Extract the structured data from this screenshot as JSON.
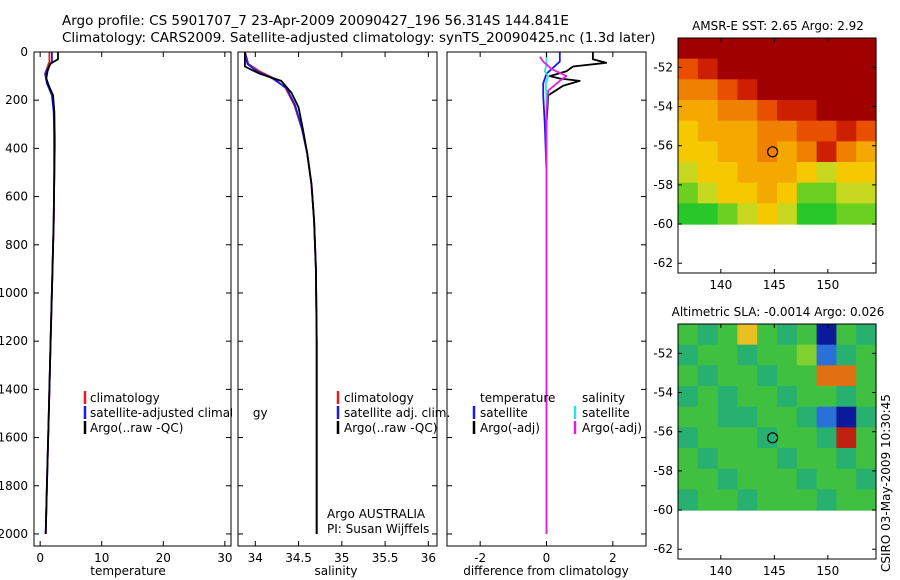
{
  "title": {
    "line1": "Argo profile: CS 5901707_7 23-Apr-2009 20090427_196 56.314S 144.841E",
    "line2": "Climatology: CARS2009. Satellite-adjusted climatology: synTS_20090425.nc (1.3d later)"
  },
  "side_text": "CSIRO 03-May-2009 10:30:45",
  "chart_data": [
    {
      "type": "line",
      "xlabel": "temperature",
      "ylabel": "",
      "xlim": [
        -1,
        31
      ],
      "ylim": [
        2050,
        0
      ],
      "xticks": [
        0,
        10,
        20,
        30
      ],
      "yticks": [
        0,
        200,
        400,
        600,
        800,
        1000,
        1200,
        1400,
        1600,
        1800,
        2000
      ],
      "grid": false,
      "legend": {
        "placement": "center-right",
        "entries": [
          {
            "label": "climatology",
            "color": "#e02020"
          },
          {
            "label": "satellite-adjusted climatology",
            "color": "#1a1ae6"
          },
          {
            "label": "Argo(..raw -QC)",
            "color": "#000000"
          }
        ]
      },
      "series": [
        {
          "name": "climatology",
          "color": "#e02020",
          "points": [
            [
              1.5,
              0
            ],
            [
              1.5,
              40
            ],
            [
              0.8,
              90
            ],
            [
              1.2,
              130
            ],
            [
              2.0,
              180
            ],
            [
              2.3,
              250
            ],
            [
              2.4,
              350
            ],
            [
              2.4,
              400
            ],
            [
              2.3,
              500
            ],
            [
              2.2,
              700
            ],
            [
              2.0,
              900
            ],
            [
              1.7,
              1200
            ],
            [
              1.4,
              1500
            ],
            [
              1.1,
              1800
            ],
            [
              0.9,
              2000
            ]
          ]
        },
        {
          "name": "satellite-adjusted climatology",
          "color": "#1a1ae6",
          "points": [
            [
              1.9,
              0
            ],
            [
              1.9,
              40
            ],
            [
              0.8,
              90
            ],
            [
              1.1,
              130
            ],
            [
              1.9,
              180
            ],
            [
              2.2,
              250
            ],
            [
              2.3,
              350
            ],
            [
              2.3,
              500
            ],
            [
              2.2,
              700
            ],
            [
              2.0,
              900
            ],
            [
              1.7,
              1200
            ],
            [
              1.4,
              1500
            ],
            [
              1.1,
              1800
            ],
            [
              0.9,
              2000
            ]
          ]
        },
        {
          "name": "Argo(..raw -QC)",
          "color": "#000000",
          "points": [
            [
              2.9,
              0
            ],
            [
              2.9,
              30
            ],
            [
              1.6,
              50
            ],
            [
              1.2,
              80
            ],
            [
              1.0,
              110
            ],
            [
              1.4,
              140
            ],
            [
              2.1,
              180
            ],
            [
              2.3,
              250
            ],
            [
              2.3,
              350
            ],
            [
              2.3,
              500
            ],
            [
              2.2,
              700
            ],
            [
              2.0,
              900
            ],
            [
              1.7,
              1200
            ],
            [
              1.4,
              1500
            ],
            [
              1.1,
              1800
            ],
            [
              0.9,
              2000
            ]
          ]
        }
      ]
    },
    {
      "type": "line",
      "xlabel": "salinity",
      "ylabel": "",
      "xlim": [
        33.8,
        36.1
      ],
      "ylim": [
        2050,
        0
      ],
      "xticks": [
        34,
        34.5,
        35,
        35.5,
        36
      ],
      "grid": false,
      "legend": {
        "placement": "center-right",
        "entries": [
          {
            "label": "climatology",
            "color": "#e02020"
          },
          {
            "label": "satellite adj. clim.",
            "color": "#1a1ae6"
          },
          {
            "label": "Argo(..raw -QC)",
            "color": "#000000"
          }
        ]
      },
      "annotations": [
        "Argo AUSTRALIA",
        "PI: Susan Wijffels"
      ],
      "series": [
        {
          "name": "climatology",
          "color": "#e02020",
          "points": [
            [
              33.88,
              0
            ],
            [
              33.92,
              50
            ],
            [
              34.05,
              80
            ],
            [
              34.22,
              110
            ],
            [
              34.35,
              150
            ],
            [
              34.45,
              220
            ],
            [
              34.54,
              320
            ],
            [
              34.6,
              420
            ],
            [
              34.65,
              550
            ],
            [
              34.68,
              700
            ],
            [
              34.7,
              900
            ],
            [
              34.71,
              1200
            ],
            [
              34.71,
              1600
            ],
            [
              34.71,
              2000
            ]
          ]
        },
        {
          "name": "satellite adj. clim.",
          "color": "#1a1ae6",
          "points": [
            [
              33.88,
              0
            ],
            [
              33.91,
              50
            ],
            [
              34.02,
              80
            ],
            [
              34.2,
              110
            ],
            [
              34.36,
              150
            ],
            [
              34.46,
              220
            ],
            [
              34.54,
              320
            ],
            [
              34.6,
              420
            ],
            [
              34.65,
              550
            ],
            [
              34.68,
              700
            ],
            [
              34.7,
              900
            ],
            [
              34.71,
              1200
            ],
            [
              34.71,
              1600
            ],
            [
              34.71,
              2000
            ]
          ]
        },
        {
          "name": "Argo(..raw -QC)",
          "color": "#000000",
          "points": [
            [
              33.88,
              0
            ],
            [
              33.88,
              60
            ],
            [
              34.05,
              90
            ],
            [
              34.3,
              120
            ],
            [
              34.42,
              170
            ],
            [
              34.5,
              230
            ],
            [
              34.55,
              320
            ],
            [
              34.6,
              420
            ],
            [
              34.65,
              550
            ],
            [
              34.68,
              700
            ],
            [
              34.7,
              900
            ],
            [
              34.71,
              1200
            ],
            [
              34.71,
              1600
            ],
            [
              34.71,
              2000
            ]
          ]
        }
      ]
    },
    {
      "type": "line",
      "xlabel": "difference from climatology",
      "ylabel": "",
      "xlim": [
        -3,
        3
      ],
      "ylim": [
        2050,
        0
      ],
      "xticks": [
        -2,
        0,
        2
      ],
      "grid": false,
      "legend": {
        "placement": "center-right",
        "headers": [
          "temperature",
          "salinity"
        ],
        "entries": [
          {
            "label": "satellite",
            "color": "#1a1ae6"
          },
          {
            "label": "Argo(-adj)",
            "color": "#000000"
          },
          {
            "label": "satellite",
            "color": "#2ee0e0"
          },
          {
            "label": "Argo(-adj)",
            "color": "#e020e0"
          }
        ]
      },
      "series": [
        {
          "name": "temperature satellite",
          "color": "#1a1ae6",
          "points": [
            [
              0.4,
              0
            ],
            [
              0.4,
              40
            ],
            [
              0.0,
              90
            ],
            [
              -0.1,
              130
            ],
            [
              -0.1,
              180
            ],
            [
              -0.05,
              300
            ],
            [
              0,
              500
            ],
            [
              0,
              2000
            ]
          ]
        },
        {
          "name": "temperature Argo(-adj)",
          "color": "#000000",
          "points": [
            [
              1.4,
              0
            ],
            [
              1.4,
              30
            ],
            [
              1.8,
              45
            ],
            [
              0.8,
              60
            ],
            [
              0.6,
              80
            ],
            [
              0.1,
              100
            ],
            [
              0.4,
              110
            ],
            [
              1.0,
              120
            ],
            [
              0.5,
              140
            ],
            [
              0.05,
              180
            ],
            [
              0,
              300
            ],
            [
              0,
              2000
            ]
          ]
        },
        {
          "name": "salinity satellite",
          "color": "#2ee0e0",
          "points": [
            [
              0,
              0
            ],
            [
              0,
              50
            ],
            [
              -0.05,
              80
            ],
            [
              0.05,
              100
            ],
            [
              -0.02,
              130
            ],
            [
              0,
              200
            ],
            [
              0,
              2000
            ]
          ]
        },
        {
          "name": "salinity Argo(-adj)",
          "color": "#e020e0",
          "points": [
            [
              -0.2,
              20
            ],
            [
              -0.1,
              40
            ],
            [
              0.15,
              70
            ],
            [
              0.6,
              100
            ],
            [
              0.4,
              120
            ],
            [
              0.05,
              160
            ],
            [
              0,
              250
            ],
            [
              0,
              2000
            ]
          ]
        }
      ]
    },
    {
      "type": "heatmap",
      "title": "AMSR-E SST: 2.65 Argo: 2.92",
      "xlim": [
        136,
        154.5
      ],
      "ylim": [
        -62.5,
        -50.5
      ],
      "xticks": [
        140,
        145,
        150
      ],
      "yticks": [
        -52,
        -54,
        -56,
        -58,
        -60,
        -62
      ],
      "data_extent": {
        "x": [
          136,
          154.5
        ],
        "y": [
          -60,
          -50.5
        ]
      },
      "marker": {
        "x": 144.84,
        "y": -56.31
      },
      "colors": [
        "#a00000",
        "#cc2000",
        "#e85000",
        "#f08000",
        "#f5a800",
        "#f5c800",
        "#c8d820",
        "#6cd020",
        "#28c82a"
      ],
      "grid": [
        [
          0,
          0,
          0,
          0,
          0,
          0,
          0,
          0,
          0,
          0
        ],
        [
          2,
          1,
          0,
          0,
          0,
          0,
          0,
          0,
          0,
          0
        ],
        [
          3,
          3,
          2,
          1,
          0,
          0,
          0,
          0,
          0,
          0
        ],
        [
          4,
          4,
          3,
          3,
          2,
          1,
          1,
          0,
          0,
          0
        ],
        [
          5,
          4,
          4,
          4,
          3,
          3,
          2,
          2,
          1,
          2
        ],
        [
          5,
          5,
          4,
          4,
          3,
          4,
          3,
          1,
          3,
          4
        ],
        [
          6,
          5,
          5,
          4,
          4,
          4,
          5,
          6,
          5,
          5
        ],
        [
          7,
          6,
          5,
          5,
          4,
          5,
          7,
          7,
          6,
          6
        ],
        [
          8,
          8,
          7,
          6,
          5,
          6,
          8,
          8,
          7,
          7
        ]
      ]
    },
    {
      "type": "heatmap",
      "title": "Altimetric SLA: -0.0014 Argo: 0.026",
      "xlim": [
        136,
        154.5
      ],
      "ylim": [
        -62.5,
        -50.5
      ],
      "xticks": [
        140,
        145,
        150
      ],
      "yticks": [
        -52,
        -54,
        -56,
        -58,
        -60,
        -62
      ],
      "data_extent": {
        "x": [
          136,
          154.5
        ],
        "y": [
          -60,
          -50.5
        ]
      },
      "marker": {
        "x": 144.84,
        "y": -56.31
      },
      "colors": [
        "#0a1a9a",
        "#2a70d8",
        "#30b8c8",
        "#28b070",
        "#40c040",
        "#80d030",
        "#e8c020",
        "#e07010",
        "#c02010"
      ],
      "grid": [
        [
          4,
          3,
          4,
          6,
          4,
          3,
          4,
          0,
          4,
          3
        ],
        [
          3,
          4,
          4,
          3,
          4,
          4,
          5,
          1,
          3,
          4
        ],
        [
          4,
          3,
          4,
          4,
          3,
          4,
          4,
          7,
          7,
          4
        ],
        [
          3,
          4,
          3,
          4,
          4,
          3,
          4,
          4,
          3,
          4
        ],
        [
          4,
          4,
          3,
          3,
          4,
          4,
          3,
          1,
          0,
          3
        ],
        [
          3,
          4,
          4,
          4,
          3,
          4,
          4,
          3,
          8,
          4
        ],
        [
          4,
          3,
          4,
          4,
          4,
          3,
          4,
          4,
          3,
          4
        ],
        [
          4,
          4,
          3,
          4,
          4,
          4,
          3,
          4,
          4,
          3
        ],
        [
          3,
          4,
          4,
          3,
          4,
          4,
          4,
          3,
          4,
          4
        ]
      ]
    }
  ]
}
